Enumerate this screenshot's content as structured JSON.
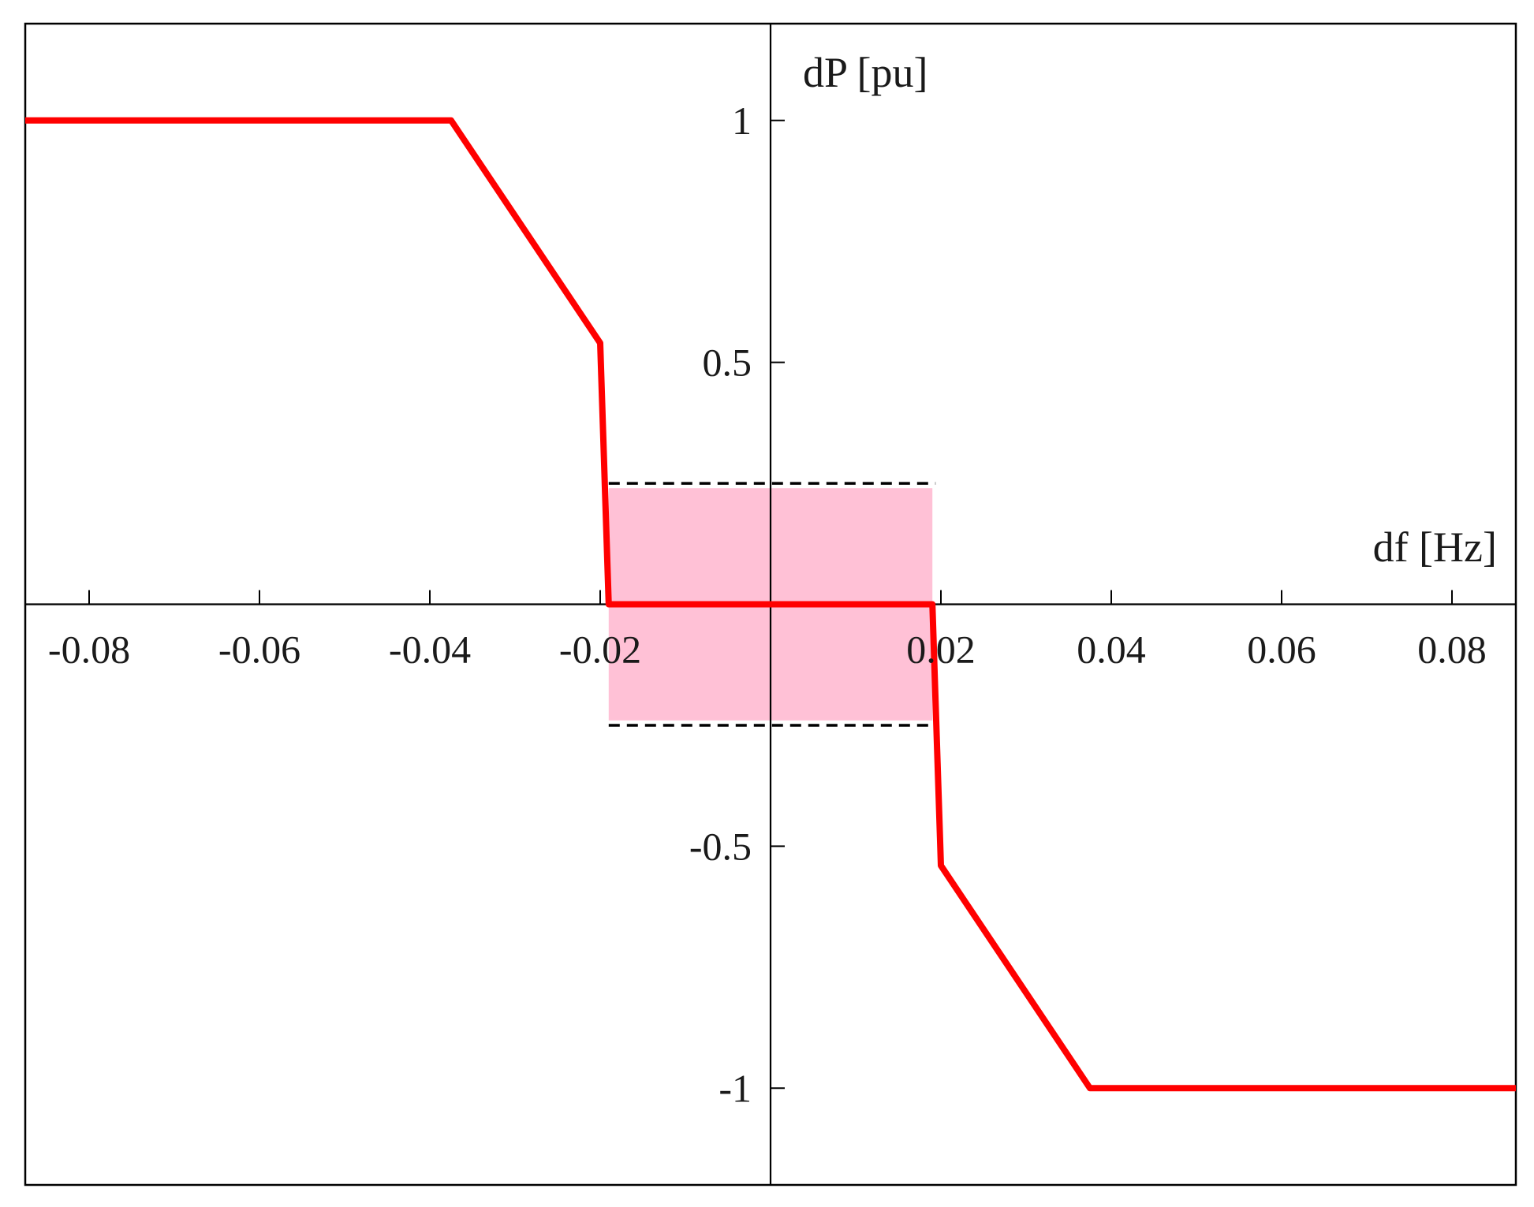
{
  "chart_data": {
    "type": "line",
    "title": "",
    "xlabel": "df [Hz]",
    "ylabel": "dP [pu]",
    "xlim": [
      -0.0875,
      0.0875
    ],
    "ylim": [
      -1.2,
      1.2
    ],
    "x_ticks": [
      -0.08,
      -0.06,
      -0.04,
      -0.02,
      0.02,
      0.04,
      0.06,
      0.08
    ],
    "x_tick_labels": [
      "-0.08",
      "-0.06",
      "-0.04",
      "-0.02",
      "0.02",
      "0.04",
      "0.06",
      "0.08"
    ],
    "y_ticks": [
      1,
      0.5,
      -0.5,
      -1
    ],
    "y_tick_labels": [
      "1",
      "0.5",
      "-0.5",
      "-1"
    ],
    "grid": false,
    "axes_through_origin": true,
    "series": [
      {
        "color": "#ff0000",
        "x": [
          -0.0875,
          -0.0375,
          -0.02,
          -0.019,
          0.019,
          0.02,
          0.0375,
          0.0875
        ],
        "y": [
          1,
          1,
          0.54,
          0,
          0,
          -0.54,
          -1,
          -1
        ]
      }
    ],
    "shaded_region": {
      "x": [
        -0.019,
        0.019
      ],
      "y": [
        -0.24,
        0.24
      ],
      "color": "#ffb6cf",
      "opacity": 0.85
    },
    "dashed_lines": [
      {
        "x": [
          -0.019,
          0.019
        ],
        "y": 0.25,
        "color": "#000000"
      },
      {
        "x": [
          -0.019,
          0.019
        ],
        "y": -0.25,
        "color": "#000000"
      }
    ]
  }
}
